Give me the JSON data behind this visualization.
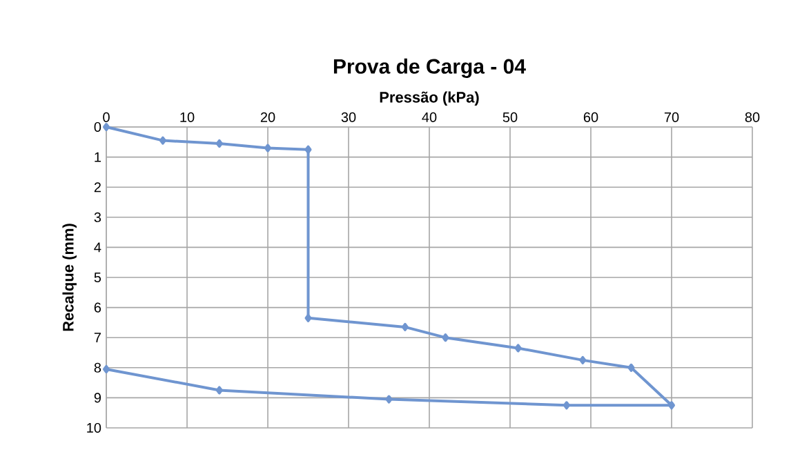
{
  "chart_data": {
    "type": "line",
    "title": "Prova de Carga - 04",
    "xlabel": "Pressão (kPa)",
    "ylabel": "Recalque (mm)",
    "x": [
      0,
      7,
      14,
      20,
      25,
      25,
      37,
      42,
      51,
      59,
      65,
      70,
      57,
      35,
      14,
      0
    ],
    "series": [
      {
        "color": "#6f95d0",
        "values": [
          0,
          0.45,
          0.55,
          0.7,
          0.75,
          6.35,
          6.65,
          7.0,
          7.35,
          7.75,
          8.0,
          9.25,
          9.25,
          9.05,
          8.75,
          8.05
        ]
      }
    ],
    "xlim": [
      0,
      80
    ],
    "xticks": [
      0,
      10,
      20,
      30,
      40,
      50,
      60,
      70,
      80
    ],
    "ylim": [
      10,
      0
    ],
    "yticks": [
      0,
      1,
      2,
      3,
      4,
      5,
      6,
      7,
      8,
      9,
      10
    ],
    "grid": true,
    "marker": "diamond",
    "line_style": "solid"
  }
}
